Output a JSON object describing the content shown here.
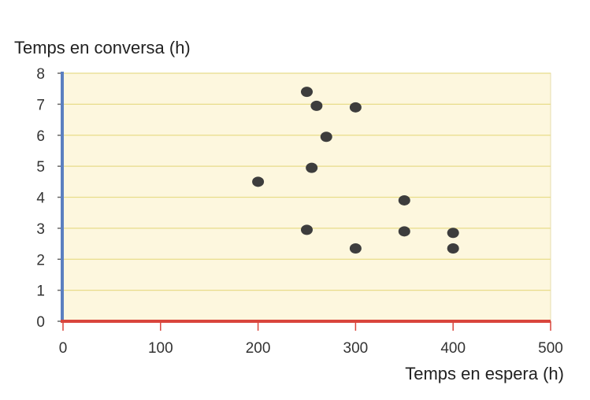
{
  "chart_data": {
    "type": "scatter",
    "title": "",
    "xlabel": "Temps en espera (h)",
    "ylabel": "Temps en conversa (h)",
    "xlim": [
      0,
      500
    ],
    "ylim": [
      0,
      8
    ],
    "xticks": [
      "0",
      "100",
      "200",
      "300",
      "400",
      "500"
    ],
    "yticks": [
      "0",
      "1",
      "2",
      "3",
      "4",
      "5",
      "6",
      "7",
      "8"
    ],
    "grid": "horizontal",
    "points": [
      {
        "x": 250,
        "y": 7.4
      },
      {
        "x": 260,
        "y": 6.95
      },
      {
        "x": 300,
        "y": 6.9
      },
      {
        "x": 270,
        "y": 5.95
      },
      {
        "x": 255,
        "y": 4.95
      },
      {
        "x": 200,
        "y": 4.5
      },
      {
        "x": 350,
        "y": 3.9
      },
      {
        "x": 250,
        "y": 2.95
      },
      {
        "x": 350,
        "y": 2.9
      },
      {
        "x": 400,
        "y": 2.85
      },
      {
        "x": 300,
        "y": 2.35
      },
      {
        "x": 400,
        "y": 2.35
      }
    ],
    "colors": {
      "plot_background": "#fdf7de",
      "gridline": "#e8dc8a",
      "y_axis": "#5b7fc0",
      "x_axis": "#d9453c",
      "point": "#3d3d3d"
    }
  }
}
